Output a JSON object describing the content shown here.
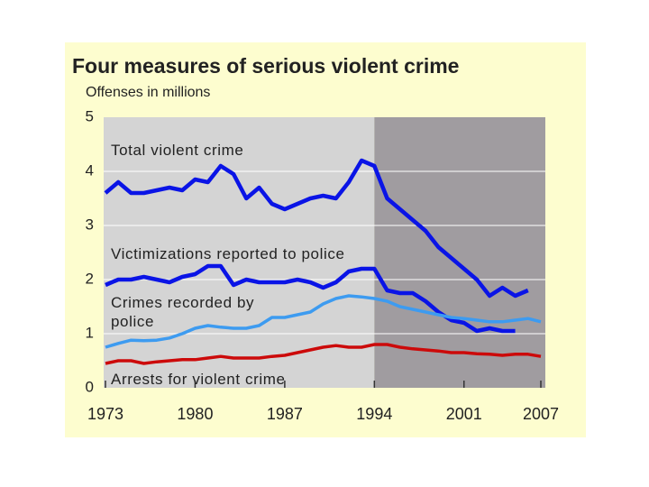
{
  "chart_data": {
    "type": "line",
    "title": "Four measures of serious violent crime",
    "y_label": "Offenses in millions",
    "x": [
      1973,
      1974,
      1975,
      1976,
      1977,
      1978,
      1979,
      1980,
      1981,
      1982,
      1983,
      1984,
      1985,
      1986,
      1987,
      1988,
      1989,
      1990,
      1991,
      1992,
      1993,
      1994,
      1995,
      1996,
      1997,
      1998,
      1999,
      2000,
      2001,
      2002,
      2003,
      2004,
      2005,
      2006,
      2007
    ],
    "xlim": [
      1973,
      2007
    ],
    "xticks": [
      1973,
      1980,
      1987,
      1994,
      2001,
      2007
    ],
    "ylim": [
      0,
      5
    ],
    "yticks": [
      0,
      1,
      2,
      3,
      4,
      5
    ],
    "grid": true,
    "series": [
      {
        "name": "Total violent crime",
        "color": "#0a14e6",
        "values": [
          3.6,
          3.8,
          3.6,
          3.6,
          3.65,
          3.7,
          3.65,
          3.85,
          3.8,
          4.1,
          3.95,
          3.5,
          3.7,
          3.4,
          3.3,
          3.4,
          3.5,
          3.55,
          3.5,
          3.8,
          4.2,
          4.1,
          3.5,
          3.3,
          3.1,
          2.9,
          2.6,
          2.4,
          2.2,
          2.0,
          1.7,
          1.85,
          1.7,
          1.8,
          null
        ]
      },
      {
        "name": "Victimizations reported to police",
        "color": "#0a14e6",
        "values": [
          1.9,
          2.0,
          2.0,
          2.05,
          2.0,
          1.95,
          2.05,
          2.1,
          2.25,
          2.25,
          1.9,
          2.0,
          1.95,
          1.95,
          1.95,
          2.0,
          1.95,
          1.85,
          1.95,
          2.15,
          2.2,
          2.2,
          1.8,
          1.75,
          1.75,
          1.6,
          1.4,
          1.25,
          1.2,
          1.05,
          1.1,
          1.05,
          1.05,
          null,
          null
        ]
      },
      {
        "name": "Crimes recorded by police",
        "color": "#3d9bf0",
        "values": [
          0.75,
          0.82,
          0.88,
          0.87,
          0.88,
          0.92,
          1.0,
          1.1,
          1.15,
          1.12,
          1.1,
          1.1,
          1.15,
          1.3,
          1.3,
          1.35,
          1.4,
          1.55,
          1.65,
          1.7,
          1.68,
          1.65,
          1.6,
          1.5,
          1.45,
          1.4,
          1.35,
          1.3,
          1.28,
          1.25,
          1.22,
          1.22,
          1.25,
          1.28,
          1.22
        ]
      },
      {
        "name": "Arrests for violent crime",
        "color": "#cc0a0a",
        "values": [
          0.45,
          0.5,
          0.5,
          0.45,
          0.48,
          0.5,
          0.52,
          0.52,
          0.55,
          0.58,
          0.55,
          0.55,
          0.55,
          0.58,
          0.6,
          0.65,
          0.7,
          0.75,
          0.78,
          0.75,
          0.75,
          0.8,
          0.8,
          0.75,
          0.72,
          0.7,
          0.68,
          0.65,
          0.65,
          0.63,
          0.62,
          0.6,
          0.62,
          0.62,
          0.58
        ]
      }
    ]
  }
}
